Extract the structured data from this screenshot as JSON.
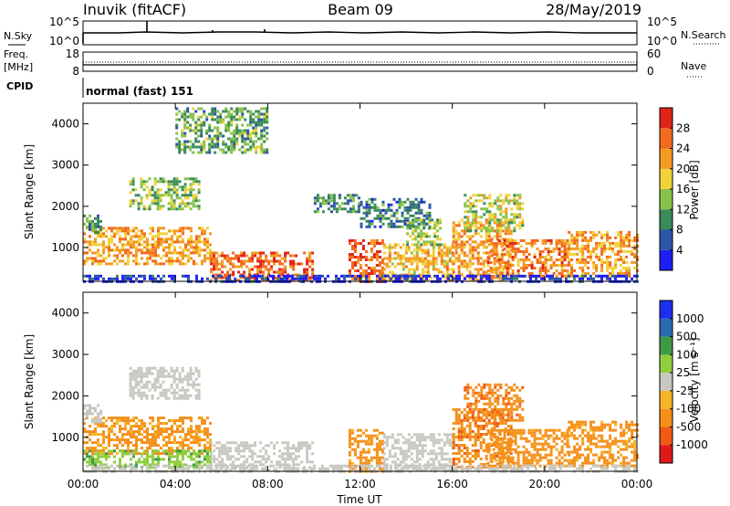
{
  "header": {
    "station": "Inuvik (fitACF)",
    "beam": "Beam 09",
    "date": "28/May/2019"
  },
  "top_panels": {
    "nsky": {
      "label": "N.Sky",
      "ticks": [
        "10^5",
        "10^0"
      ]
    },
    "nsearch": {
      "label": "N.Search",
      "ticks": [
        "10^5",
        "10^0"
      ]
    },
    "freq": {
      "label_line1": "Freq.",
      "label_line2": "[MHz]",
      "ticks": [
        "18",
        "8"
      ]
    },
    "nave": {
      "label": "Nave",
      "ticks": [
        "60",
        "0"
      ]
    },
    "cpid": {
      "label": "CPID",
      "value": "normal (fast) 151"
    }
  },
  "colors": {
    "power": [
      "#1e1ef5",
      "#2d54a8",
      "#3a8a5a",
      "#88c24a",
      "#f2d23a",
      "#f39a22",
      "#f26a1e",
      "#e02418"
    ],
    "velocity": [
      "#e01818",
      "#f05a14",
      "#f5901a",
      "#f7b424",
      "#c8c8c0",
      "#8fce3c",
      "#3f9a48",
      "#2a6ab0",
      "#1e2ef0"
    ],
    "ground_scatter": "#c8c8c0"
  },
  "chart_data": [
    {
      "type": "heatmap",
      "name": "power",
      "xlabel": "",
      "ylabel": "Slant Range [km]",
      "x_ticks": [
        "00:00",
        "04:00",
        "08:00",
        "12:00",
        "16:00",
        "20:00",
        "00:00"
      ],
      "y_ticks": [
        1000,
        2000,
        3000,
        4000
      ],
      "ylim": [
        180,
        4500
      ],
      "xlim_hours": [
        0,
        24
      ],
      "colorbar": {
        "label": "Power [dB]",
        "tick_labels": [
          "4",
          "8",
          "12",
          "16",
          "20",
          "24",
          "28"
        ],
        "range": [
          0,
          32
        ]
      },
      "regions": [
        {
          "t": [
            0.0,
            5.5
          ],
          "r": [
            600,
            1500
          ],
          "value": 22
        },
        {
          "t": [
            0.0,
            0.8
          ],
          "r": [
            1400,
            1800
          ],
          "value": 10
        },
        {
          "t": [
            2.0,
            5.0
          ],
          "r": [
            1950,
            2700
          ],
          "value": 14
        },
        {
          "t": [
            5.5,
            10.0
          ],
          "r": [
            180,
            900
          ],
          "value": 26
        },
        {
          "t": [
            4.0,
            8.0
          ],
          "r": [
            3300,
            4400
          ],
          "value": 12
        },
        {
          "t": [
            10.0,
            12.0
          ],
          "r": [
            1850,
            2300
          ],
          "value": 10
        },
        {
          "t": [
            11.5,
            13.0
          ],
          "r": [
            180,
            1200
          ],
          "value": 26
        },
        {
          "t": [
            12.0,
            15.0
          ],
          "r": [
            1500,
            2200
          ],
          "value": 8
        },
        {
          "t": [
            13.0,
            16.0
          ],
          "r": [
            180,
            1100
          ],
          "value": 20
        },
        {
          "t": [
            14.0,
            15.5
          ],
          "r": [
            1100,
            1700
          ],
          "value": 14
        },
        {
          "t": [
            16.0,
            18.5
          ],
          "r": [
            180,
            1700
          ],
          "value": 22
        },
        {
          "t": [
            16.5,
            19.0
          ],
          "r": [
            1400,
            2300
          ],
          "value": 16
        },
        {
          "t": [
            17.5,
            21.0
          ],
          "r": [
            300,
            1200
          ],
          "value": 24
        },
        {
          "t": [
            21.0,
            24.0
          ],
          "r": [
            300,
            1400
          ],
          "value": 22
        },
        {
          "t": [
            0.0,
            24.0
          ],
          "r": [
            180,
            340
          ],
          "value": 4
        }
      ]
    },
    {
      "type": "heatmap",
      "name": "velocity",
      "xlabel": "Time UT",
      "ylabel": "Slant Range [km]",
      "x_ticks": [
        "00:00",
        "04:00",
        "08:00",
        "12:00",
        "16:00",
        "20:00",
        "00:00"
      ],
      "y_ticks": [
        1000,
        2000,
        3000,
        4000
      ],
      "ylim": [
        180,
        4500
      ],
      "xlim_hours": [
        0,
        24
      ],
      "colorbar": {
        "label": "Velocity [m s⁻¹]",
        "tick_labels": [
          "-1000",
          "-500",
          "-100",
          "-25",
          "25",
          "100",
          "500",
          "1000"
        ]
      },
      "regions": [
        {
          "t": [
            0.0,
            5.5
          ],
          "r": [
            600,
            1500
          ],
          "value": -150
        },
        {
          "t": [
            0.0,
            5.5
          ],
          "r": [
            300,
            700
          ],
          "value": 60
        },
        {
          "t": [
            0.0,
            0.8
          ],
          "r": [
            1400,
            1800
          ],
          "value": 0
        },
        {
          "t": [
            2.0,
            5.0
          ],
          "r": [
            1950,
            2700
          ],
          "value": 0
        },
        {
          "t": [
            5.5,
            10.0
          ],
          "r": [
            180,
            900
          ],
          "value": 0
        },
        {
          "t": [
            11.5,
            13.0
          ],
          "r": [
            180,
            1200
          ],
          "value": -200
        },
        {
          "t": [
            13.0,
            16.0
          ],
          "r": [
            180,
            1100
          ],
          "value": 0
        },
        {
          "t": [
            16.0,
            18.5
          ],
          "r": [
            300,
            1700
          ],
          "value": -300
        },
        {
          "t": [
            16.5,
            19.0
          ],
          "r": [
            1400,
            2300
          ],
          "value": -300
        },
        {
          "t": [
            17.5,
            21.0
          ],
          "r": [
            300,
            1200
          ],
          "value": -200
        },
        {
          "t": [
            21.0,
            24.0
          ],
          "r": [
            300,
            1400
          ],
          "value": -150
        },
        {
          "t": [
            0.0,
            24.0
          ],
          "r": [
            180,
            340
          ],
          "value": 0
        }
      ]
    }
  ]
}
